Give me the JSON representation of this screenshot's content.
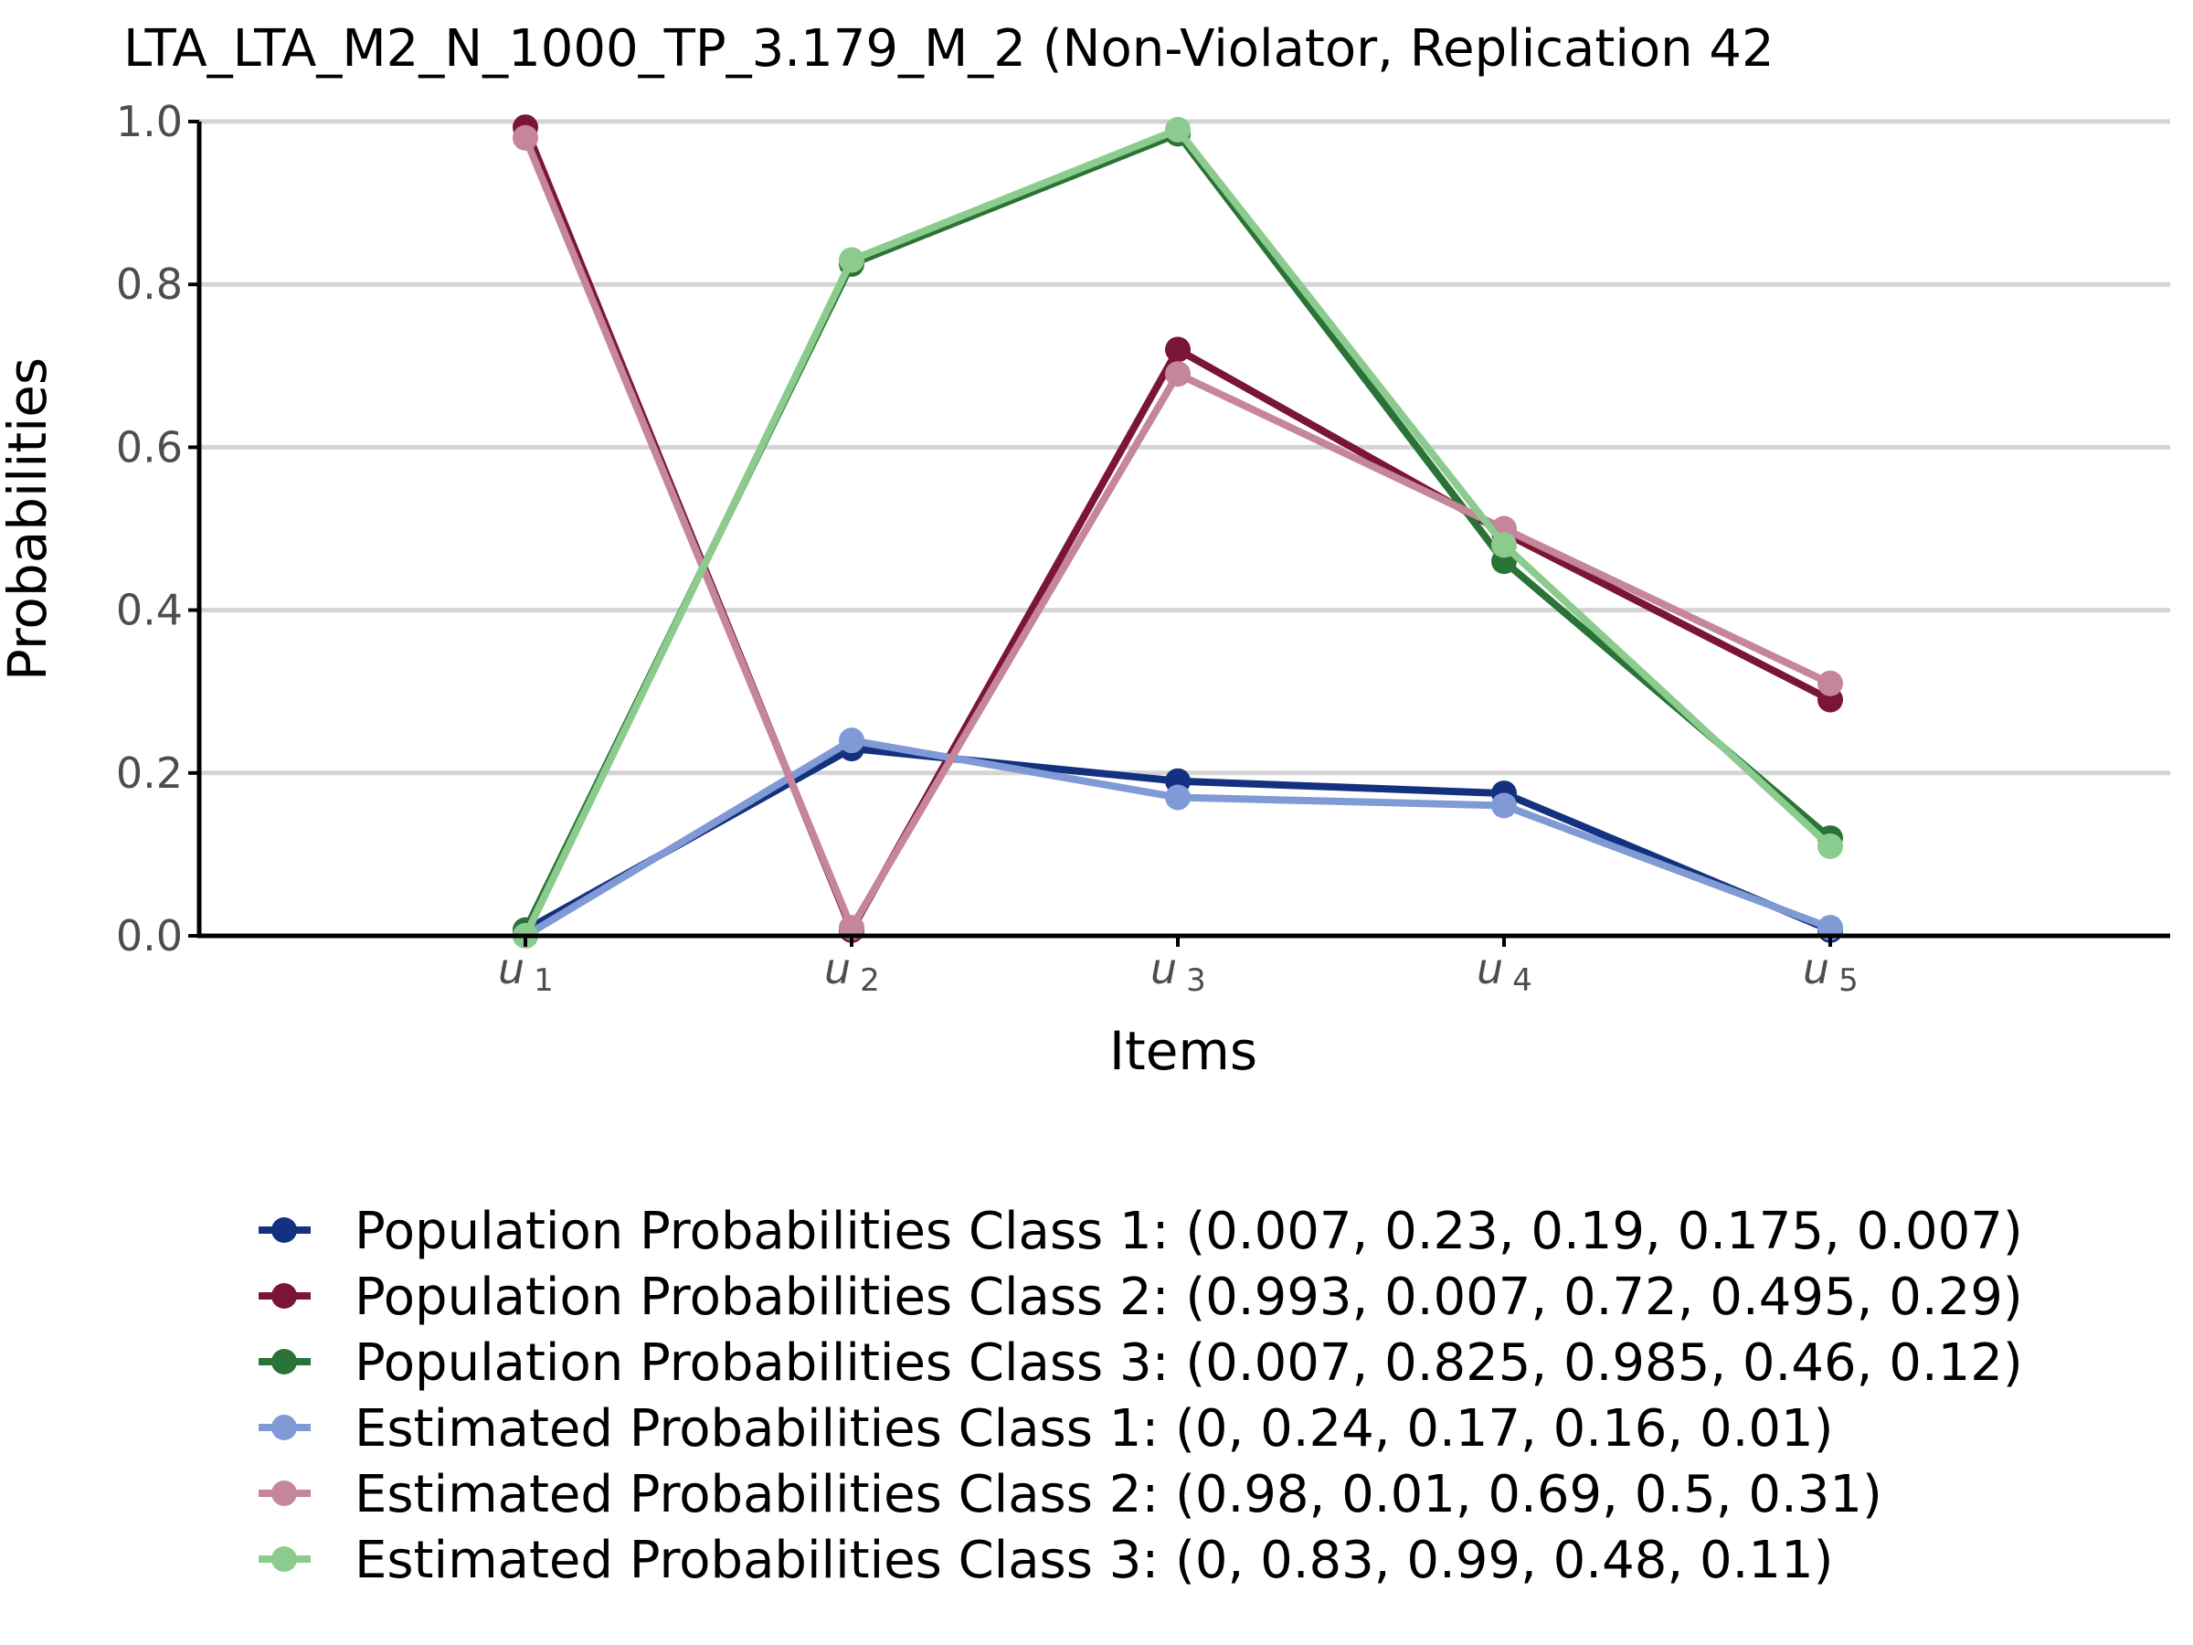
{
  "chart_data": {
    "type": "line",
    "title": "LTA_LTA_M2_N_1000_TP_3.179_M_2 (Non-Violator, Replication 42",
    "xlabel": "Items",
    "ylabel": "Probabilities",
    "ylim": [
      0,
      1
    ],
    "yticks": [
      "0.0",
      "0.2",
      "0.4",
      "0.6",
      "0.8",
      "1.0"
    ],
    "ytick_values": [
      0,
      0.2,
      0.4,
      0.6,
      0.8,
      1.0
    ],
    "categories": [
      {
        "main": "u",
        "sub": "1"
      },
      {
        "main": "u",
        "sub": "2"
      },
      {
        "main": "u",
        "sub": "3"
      },
      {
        "main": "u",
        "sub": "4"
      },
      {
        "main": "u",
        "sub": "5"
      }
    ],
    "grid": "horizontal",
    "legend_position": "bottom",
    "series": [
      {
        "name": "Population Probabilities Class 1: (0.007, 0.23, 0.19, 0.175, 0.007)",
        "color": "#14317f",
        "values": [
          0.007,
          0.23,
          0.19,
          0.175,
          0.007
        ]
      },
      {
        "name": "Population Probabilities Class 2: (0.993, 0.007, 0.72, 0.495, 0.29)",
        "color": "#7b1535",
        "values": [
          0.993,
          0.007,
          0.72,
          0.495,
          0.29
        ]
      },
      {
        "name": "Population Probabilities Class 3: (0.007, 0.825, 0.985, 0.46, 0.12)",
        "color": "#2a7337",
        "values": [
          0.007,
          0.825,
          0.985,
          0.46,
          0.12
        ]
      },
      {
        "name": "Estimated Probabilities Class 1: (0, 0.24, 0.17, 0.16, 0.01)",
        "color": "#7f9ad5",
        "values": [
          0,
          0.24,
          0.17,
          0.16,
          0.01
        ]
      },
      {
        "name": "Estimated Probabilities Class 2: (0.98, 0.01, 0.69, 0.5, 0.31)",
        "color": "#c5859a",
        "values": [
          0.98,
          0.01,
          0.69,
          0.5,
          0.31
        ]
      },
      {
        "name": "Estimated Probabilities Class 3: (0, 0.83, 0.99, 0.48, 0.11)",
        "color": "#8ccb8e",
        "values": [
          0,
          0.83,
          0.99,
          0.48,
          0.11
        ]
      }
    ]
  }
}
